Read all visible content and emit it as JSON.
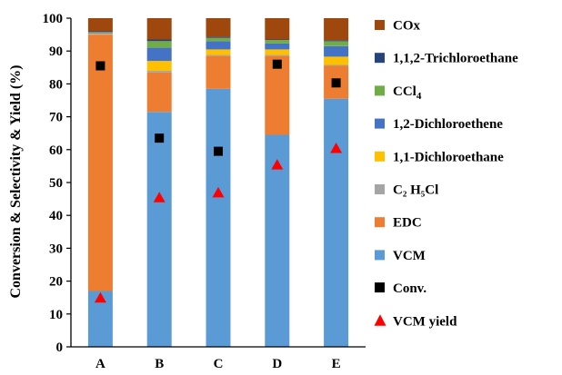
{
  "chart_data": {
    "type": "bar",
    "stacked": true,
    "title": "",
    "xlabel": "",
    "ylabel": "Conversion & Selectivity & Yield (%)",
    "ylim": [
      0,
      100
    ],
    "yticks": [
      0,
      10,
      20,
      30,
      40,
      50,
      60,
      70,
      80,
      90,
      100
    ],
    "grid": false,
    "legend_position": "right",
    "categories": [
      "A",
      "B",
      "C",
      "D",
      "E"
    ],
    "series": [
      {
        "name": "VCM",
        "color": "#5b9bd5",
        "values": [
          17.0,
          71.5,
          78.5,
          64.5,
          75.5
        ]
      },
      {
        "name": "EDC",
        "color": "#ed7d31",
        "values": [
          78.0,
          12.0,
          10.0,
          24.0,
          10.0
        ]
      },
      {
        "name": "C2 H5Cl",
        "color": "#a5a5a5",
        "values": [
          0.2,
          0.5,
          0.3,
          0.3,
          0.3
        ]
      },
      {
        "name": "1,1-Dichloroethane",
        "color": "#ffc000",
        "values": [
          0.2,
          3.0,
          1.7,
          1.7,
          2.5
        ]
      },
      {
        "name": "1,2-Dichloroethene",
        "color": "#4472c4",
        "values": [
          0.3,
          4.0,
          2.5,
          1.8,
          3.2
        ]
      },
      {
        "name": "CCl4",
        "color": "#70ad47",
        "values": [
          0.1,
          2.0,
          1.0,
          1.0,
          1.5
        ]
      },
      {
        "name": "1,1,2-Trichloroethane",
        "color": "#264478",
        "values": [
          0.2,
          0.5,
          0.3,
          0.2,
          0.3
        ]
      },
      {
        "name": "COx",
        "color": "#9e480e",
        "values": [
          4.0,
          6.5,
          5.7,
          6.5,
          6.7
        ]
      }
    ],
    "markers": [
      {
        "name": "Conv.",
        "shape": "square",
        "color": "#000000",
        "values": [
          85.5,
          63.5,
          59.5,
          86.0,
          80.3
        ]
      },
      {
        "name": "VCM yield",
        "shape": "triangle",
        "color": "#ff0000",
        "values": [
          15.0,
          45.5,
          47.0,
          55.5,
          60.5
        ]
      }
    ],
    "legend": [
      {
        "label": "COx",
        "sub": "",
        "shape": "rect",
        "color": "#9e480e"
      },
      {
        "label": "1,1,2-Trichloroethane",
        "sub": "",
        "shape": "rect",
        "color": "#264478"
      },
      {
        "label": "CCl",
        "sub": "4",
        "shape": "rect",
        "color": "#70ad47"
      },
      {
        "label": "1,2-Dichloroethene",
        "sub": "",
        "shape": "rect",
        "color": "#4472c4"
      },
      {
        "label": "1,1-Dichloroethane",
        "sub": "",
        "shape": "rect",
        "color": "#ffc000"
      },
      {
        "label": "C₂ H₅Cl",
        "sub": "",
        "shape": "rect",
        "color": "#a5a5a5"
      },
      {
        "label": "EDC",
        "sub": "",
        "shape": "rect",
        "color": "#ed7d31"
      },
      {
        "label": "VCM",
        "sub": "",
        "shape": "rect",
        "color": "#5b9bd5"
      },
      {
        "label": "Conv.",
        "sub": "",
        "shape": "square",
        "color": "#000000"
      },
      {
        "label": "VCM yield",
        "sub": "",
        "shape": "triangle",
        "color": "#ff0000"
      }
    ]
  }
}
